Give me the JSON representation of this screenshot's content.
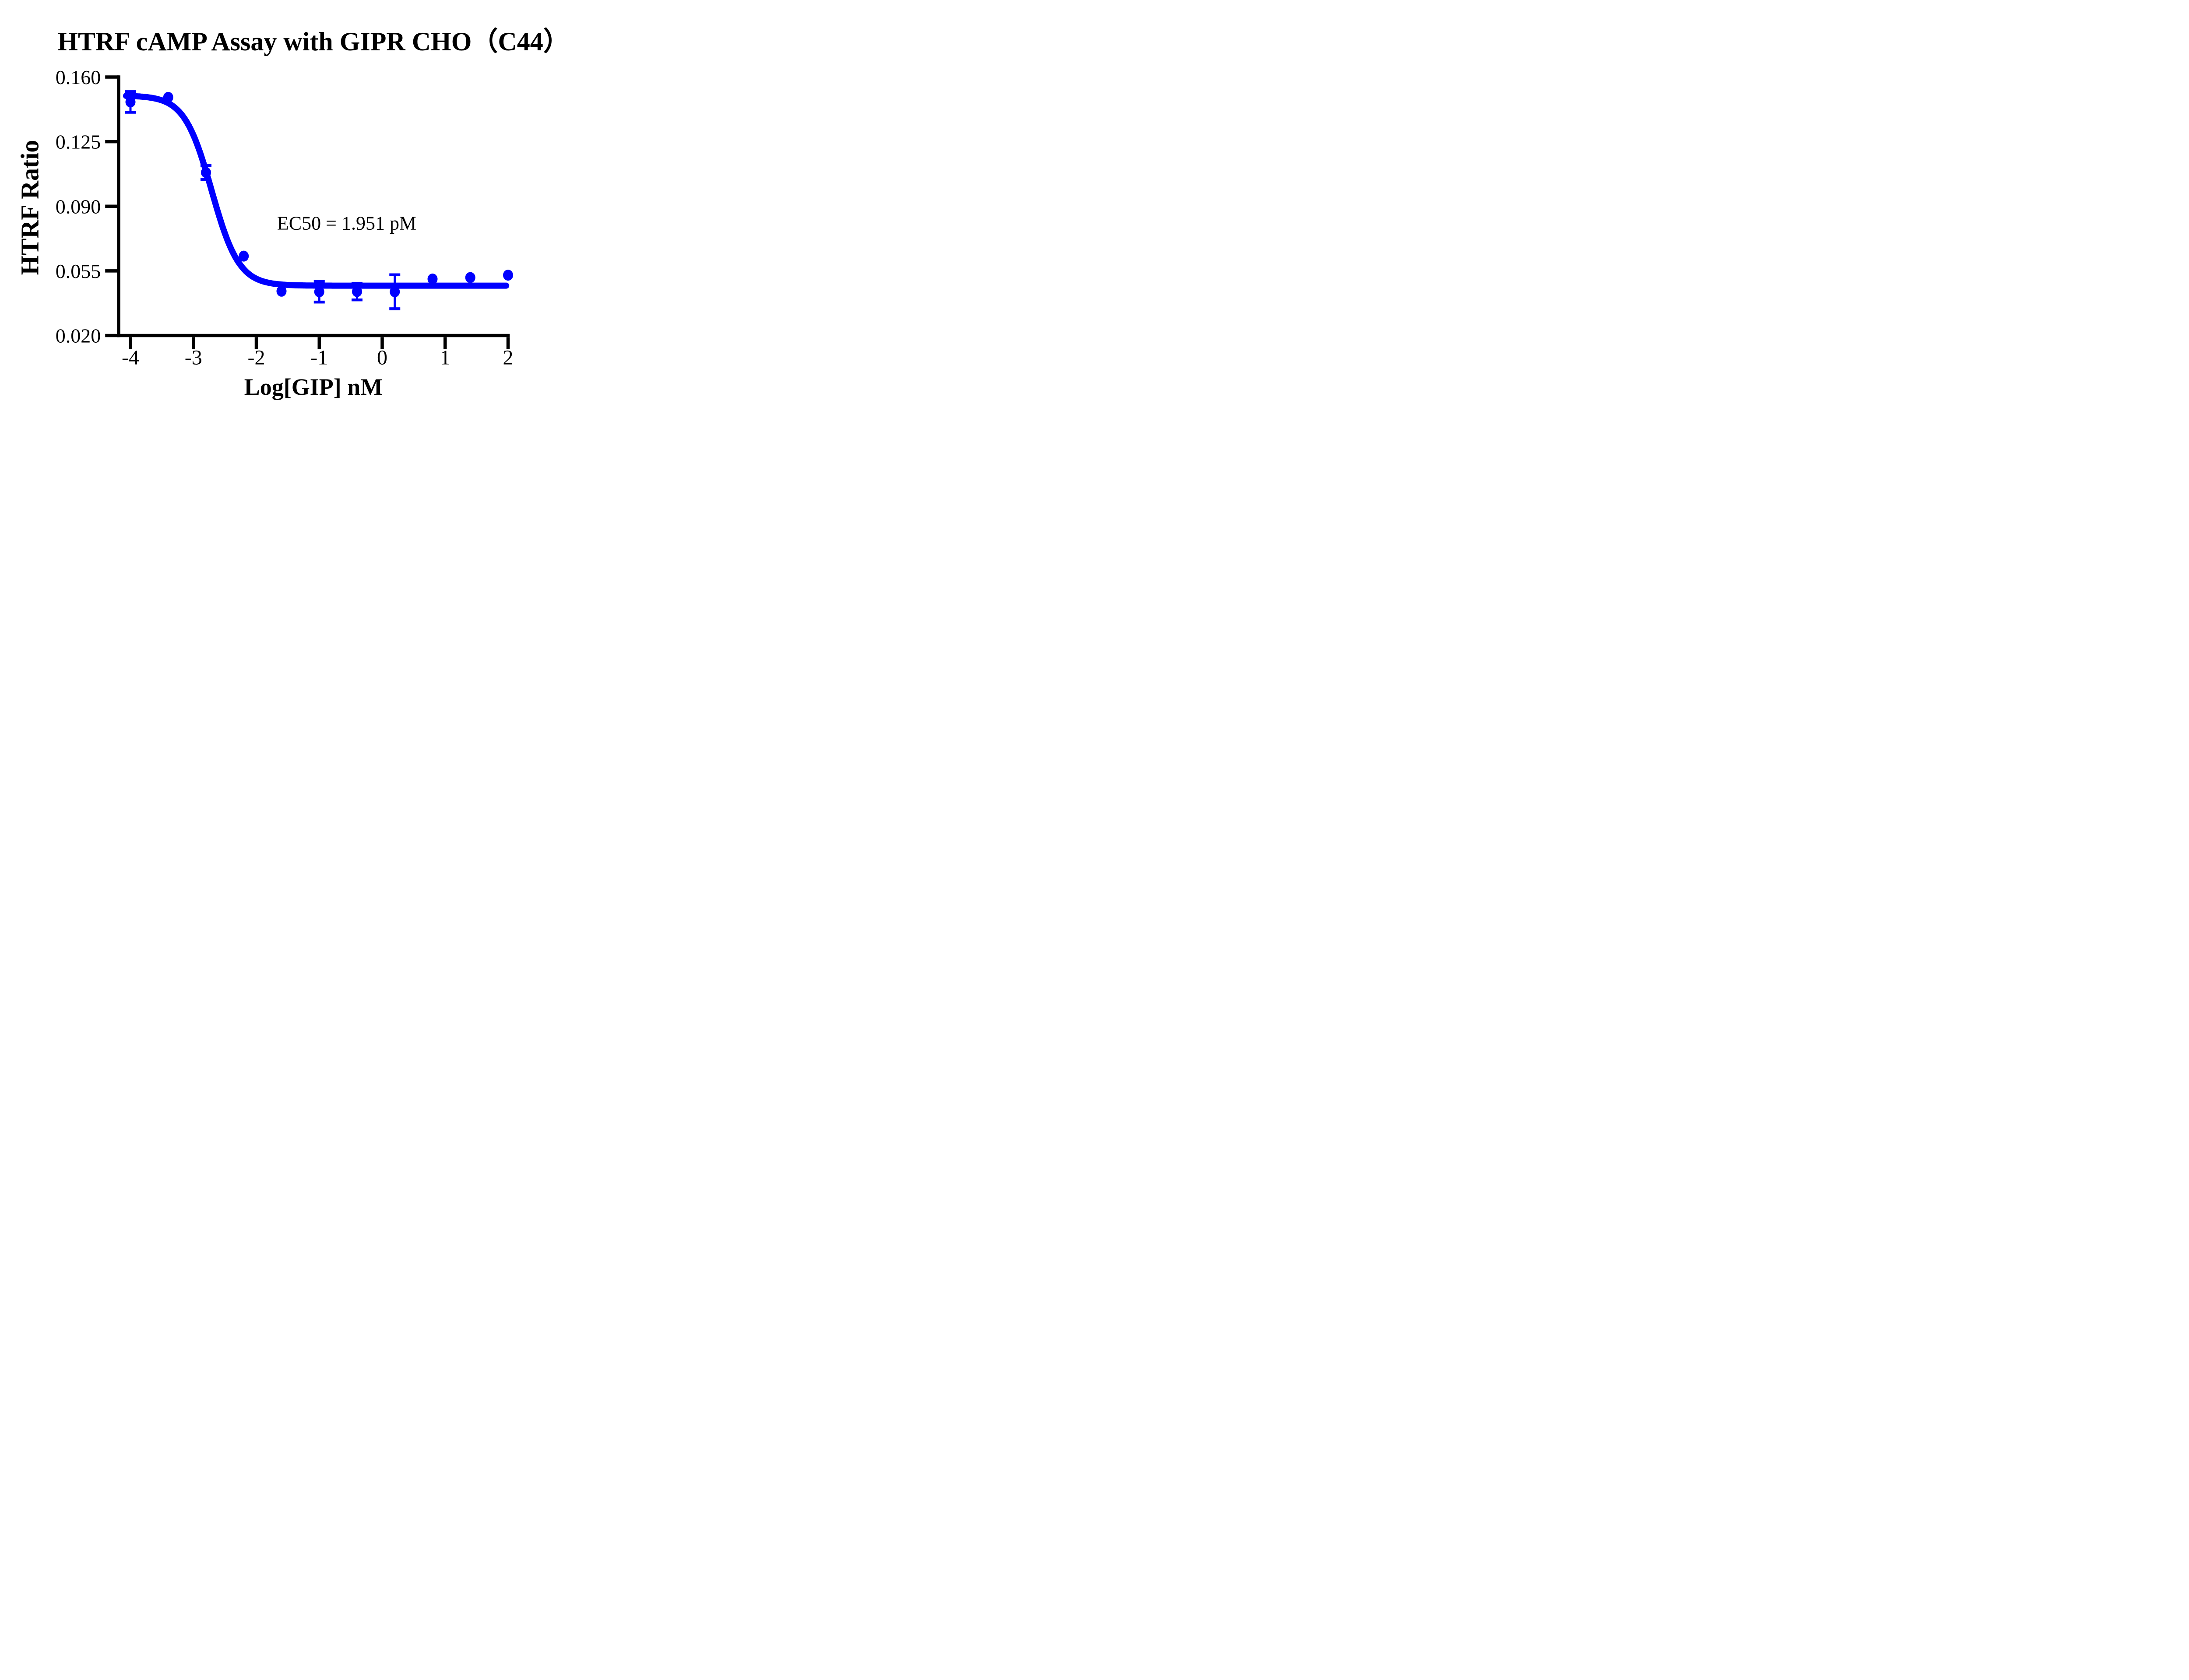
{
  "colors": {
    "series": "#0000FF",
    "axis": "#000000",
    "text": "#000000",
    "background": "#FFFFFF"
  },
  "chart_data": {
    "type": "scatter",
    "title": "HTRF cAMP Assay with GIPR CHO（C44）",
    "xlabel": "Log[GIP] nM",
    "ylabel": "HTRF Ratio",
    "annotation": "EC50 = 1.951 pM",
    "ec50_pM": 1.951,
    "xlim": [
      -4.19,
      2.09
    ],
    "ylim": [
      0.02,
      0.16
    ],
    "grid": false,
    "legend": "none",
    "x_ticks": [
      -4,
      -3,
      -2,
      -1,
      0,
      1,
      2
    ],
    "x_tick_labels": [
      "-4",
      "-3",
      "-2",
      "-1",
      "0",
      "1",
      "2"
    ],
    "y_ticks": [
      0.16,
      0.125,
      0.09,
      0.055,
      0.02
    ],
    "y_tick_labels": [
      "0.160",
      "0.125",
      "0.090",
      "0.055",
      "0.020"
    ],
    "points": [
      {
        "x": -4.0,
        "y": 0.1465,
        "err": 0.0056
      },
      {
        "x": -3.4,
        "y": 0.149,
        "err": null
      },
      {
        "x": -2.8,
        "y": 0.1083,
        "err": 0.0038
      },
      {
        "x": -2.2,
        "y": 0.063,
        "err": null
      },
      {
        "x": -1.6,
        "y": 0.044,
        "err": null
      },
      {
        "x": -1.0,
        "y": 0.0437,
        "err": 0.0056
      },
      {
        "x": -0.4,
        "y": 0.0438,
        "err": 0.0045
      },
      {
        "x": 0.2,
        "y": 0.0437,
        "err": 0.0092
      },
      {
        "x": 0.8,
        "y": 0.0506,
        "err": null
      },
      {
        "x": 1.4,
        "y": 0.0514,
        "err": null
      },
      {
        "x": 2.0,
        "y": 0.0527,
        "err": null
      }
    ],
    "fit": {
      "model": "sigmoidal-4PL-decreasing",
      "top": 0.15,
      "bottom": 0.047,
      "log_ec50": -2.71,
      "hill": 2.0,
      "x_start": -4.07,
      "x_end": 1.97
    }
  }
}
